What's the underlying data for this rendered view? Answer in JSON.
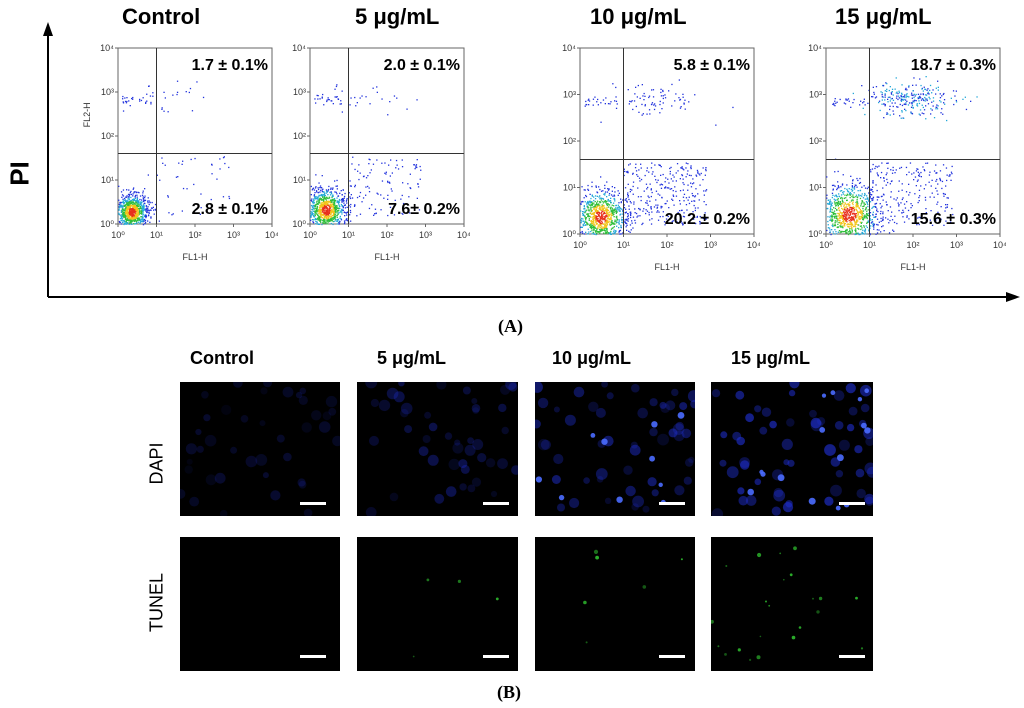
{
  "panel_a": {
    "label": "(A)",
    "y_axis_label": "PI",
    "conditions": [
      "Control",
      "5 μg/mL",
      "10 μg/mL",
      "15 μg/mL"
    ]
  },
  "panel_b": {
    "label": "(B)",
    "conditions": [
      "Control",
      "5 μg/mL",
      "10 μg/mL",
      "15 μg/mL"
    ],
    "rows": [
      "DAPI",
      "TUNEL"
    ],
    "colors": {
      "DAPI": "#1f2fd0",
      "TUNEL": "#2fc02f",
      "background": "#000000"
    }
  },
  "chart_data": [
    {
      "type": "scatter",
      "title": "Control",
      "xlabel": "FL1-H",
      "ylabel": "FL2-H",
      "x_scale": "log",
      "y_scale": "log",
      "xlim": [
        1,
        10000
      ],
      "ylim": [
        1,
        10000
      ],
      "x_ticks": [
        "10⁰",
        "10¹",
        "10²",
        "10³",
        "10⁴"
      ],
      "y_ticks": [
        "10⁰",
        "10¹",
        "10²",
        "10³",
        "10⁴"
      ],
      "quadrant_gate": [
        10,
        40
      ],
      "quadrant_labels": {
        "upper_right": "1.7 ± 0.1%",
        "lower_right": "2.8 ± 0.1%"
      },
      "quadrant_values": {
        "upper_right": 1.7,
        "upper_right_err": 0.1,
        "lower_right": 2.8,
        "lower_right_err": 0.1
      }
    },
    {
      "type": "scatter",
      "title": "5 μg/mL",
      "xlabel": "FL1-H",
      "ylabel": "",
      "x_scale": "log",
      "y_scale": "log",
      "xlim": [
        1,
        10000
      ],
      "ylim": [
        1,
        10000
      ],
      "x_ticks": [
        "10⁰",
        "10¹",
        "10²",
        "10³",
        "10⁴"
      ],
      "y_ticks": [
        "10⁰",
        "10¹",
        "10²",
        "10³",
        "10⁴"
      ],
      "quadrant_gate": [
        10,
        40
      ],
      "quadrant_labels": {
        "upper_right": "2.0 ± 0.1%",
        "lower_right": "7.6± 0.2%"
      },
      "quadrant_values": {
        "upper_right": 2.0,
        "upper_right_err": 0.1,
        "lower_right": 7.6,
        "lower_right_err": 0.2
      }
    },
    {
      "type": "scatter",
      "title": "10 μg/mL",
      "xlabel": "FL1-H",
      "ylabel": "",
      "x_scale": "log",
      "y_scale": "log",
      "xlim": [
        1,
        10000
      ],
      "ylim": [
        1,
        10000
      ],
      "x_ticks": [
        "10⁰",
        "10¹",
        "10²",
        "10³",
        "10⁴"
      ],
      "y_ticks": [
        "10⁰",
        "10¹",
        "10²",
        "10³",
        "10⁴"
      ],
      "quadrant_gate": [
        10,
        40
      ],
      "quadrant_labels": {
        "upper_right": "5.8 ± 0.1%",
        "lower_right": "20.2 ± 0.2%"
      },
      "quadrant_values": {
        "upper_right": 5.8,
        "upper_right_err": 0.1,
        "lower_right": 20.2,
        "lower_right_err": 0.2
      }
    },
    {
      "type": "scatter",
      "title": "15 μg/mL",
      "xlabel": "FL1-H",
      "ylabel": "",
      "x_scale": "log",
      "y_scale": "log",
      "xlim": [
        1,
        10000
      ],
      "ylim": [
        1,
        10000
      ],
      "x_ticks": [
        "10⁰",
        "10¹",
        "10²",
        "10³",
        "10⁴"
      ],
      "y_ticks": [
        "10⁰",
        "10¹",
        "10²",
        "10³",
        "10⁴"
      ],
      "quadrant_gate": [
        10,
        40
      ],
      "quadrant_labels": {
        "upper_right": "18.7 ± 0.3%",
        "lower_right": "15.6 ± 0.3%"
      },
      "quadrant_values": {
        "upper_right": 18.7,
        "upper_right_err": 0.3,
        "lower_right": 15.6,
        "lower_right_err": 0.3
      }
    }
  ]
}
